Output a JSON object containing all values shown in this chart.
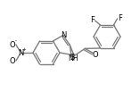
{
  "bg_color": "#ffffff",
  "bond_color": "#7f7f7f",
  "text_color": "#000000",
  "line_width": 1.0,
  "font_size": 6.0,
  "figsize": [
    1.57,
    1.13
  ],
  "dpi": 100,
  "xlim": [
    0,
    157
  ],
  "ylim": [
    0,
    113
  ]
}
